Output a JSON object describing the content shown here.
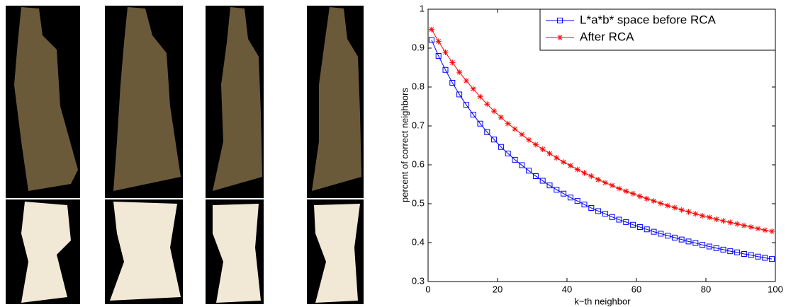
{
  "chart_data": {
    "type": "line",
    "xlabel": "k−th neighbor",
    "ylabel": "percent of correct neighbors",
    "x": [
      1,
      3,
      5,
      7,
      9,
      11,
      13,
      15,
      17,
      19,
      21,
      23,
      25,
      27,
      29,
      31,
      33,
      35,
      37,
      39,
      41,
      43,
      45,
      47,
      49,
      51,
      53,
      55,
      57,
      59,
      61,
      63,
      65,
      67,
      69,
      71,
      73,
      75,
      77,
      79,
      81,
      83,
      85,
      87,
      89,
      91,
      93,
      95,
      97,
      99
    ],
    "series": [
      {
        "name": "L*a*b* space before RCA",
        "color": "#0000ff",
        "marker": "square",
        "values": [
          0.921,
          0.88,
          0.844,
          0.811,
          0.781,
          0.754,
          0.729,
          0.706,
          0.684,
          0.665,
          0.646,
          0.629,
          0.613,
          0.599,
          0.585,
          0.571,
          0.559,
          0.547,
          0.536,
          0.526,
          0.516,
          0.507,
          0.498,
          0.489,
          0.481,
          0.474,
          0.466,
          0.459,
          0.453,
          0.446,
          0.44,
          0.434,
          0.428,
          0.423,
          0.418,
          0.413,
          0.408,
          0.403,
          0.399,
          0.394,
          0.39,
          0.386,
          0.382,
          0.378,
          0.375,
          0.371,
          0.368,
          0.364,
          0.361,
          0.358
        ]
      },
      {
        "name": "After RCA",
        "color": "#ff0000",
        "marker": "star",
        "values": [
          0.948,
          0.917,
          0.889,
          0.863,
          0.838,
          0.816,
          0.795,
          0.775,
          0.756,
          0.738,
          0.722,
          0.706,
          0.692,
          0.678,
          0.664,
          0.652,
          0.64,
          0.629,
          0.618,
          0.607,
          0.598,
          0.588,
          0.579,
          0.571,
          0.562,
          0.554,
          0.547,
          0.539,
          0.532,
          0.526,
          0.519,
          0.513,
          0.507,
          0.501,
          0.495,
          0.49,
          0.484,
          0.479,
          0.474,
          0.469,
          0.465,
          0.46,
          0.456,
          0.452,
          0.448,
          0.444,
          0.44,
          0.436,
          0.432,
          0.429
        ]
      }
    ],
    "xlim": [
      0,
      100
    ],
    "xticks": [
      0,
      20,
      40,
      60,
      80,
      100
    ],
    "ylim": [
      0.3,
      1
    ],
    "yticks": [
      0.3,
      0.4,
      0.5,
      0.6,
      0.7,
      0.8,
      0.9,
      1
    ],
    "legend": "upper right",
    "grid": false
  }
}
